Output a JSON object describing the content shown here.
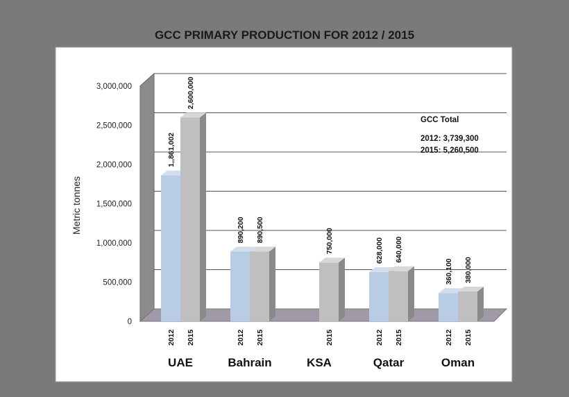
{
  "chart_data": {
    "type": "bar",
    "title": "GCC PRIMARY PRODUCTION FOR 2012 / 2015",
    "ylabel": "Metric tonnes",
    "xlabel": "",
    "ylim": [
      0,
      3000000
    ],
    "yticks": [
      "0",
      "500,000",
      "1,000,000",
      "1,500,000",
      "2,000,000",
      "2,500,000",
      "3,000,000"
    ],
    "ytick_values": [
      0,
      500000,
      1000000,
      1500000,
      2000000,
      2500000,
      3000000
    ],
    "grid": true,
    "colors": {
      "2012": "#b8cce4",
      "2015": "#bfbfbf"
    },
    "groups": [
      {
        "category": "UAE",
        "bars": [
          {
            "year": "2012",
            "value": 1861002,
            "label": "1,,861,002"
          },
          {
            "year": "2015",
            "value": 2600000,
            "label": "2,600,000"
          }
        ]
      },
      {
        "category": "Bahrain",
        "bars": [
          {
            "year": "2012",
            "value": 890200,
            "label": "890,200"
          },
          {
            "year": "2015",
            "value": 890500,
            "label": "890,500"
          }
        ]
      },
      {
        "category": "KSA",
        "bars": [
          {
            "year": "2015",
            "value": 750000,
            "label": "750,000"
          }
        ]
      },
      {
        "category": "Qatar",
        "bars": [
          {
            "year": "2012",
            "value": 628000,
            "label": "628,000"
          },
          {
            "year": "2015",
            "value": 640000,
            "label": "640,000"
          }
        ]
      },
      {
        "category": "Oman",
        "bars": [
          {
            "year": "2012",
            "value": 360100,
            "label": "360,100"
          },
          {
            "year": "2015",
            "value": 380000,
            "label": "380,000"
          }
        ]
      }
    ],
    "annotation": {
      "heading": "GCC Total",
      "lines": [
        "2012: 3,739,300",
        "2015: 5,260,500"
      ]
    }
  }
}
